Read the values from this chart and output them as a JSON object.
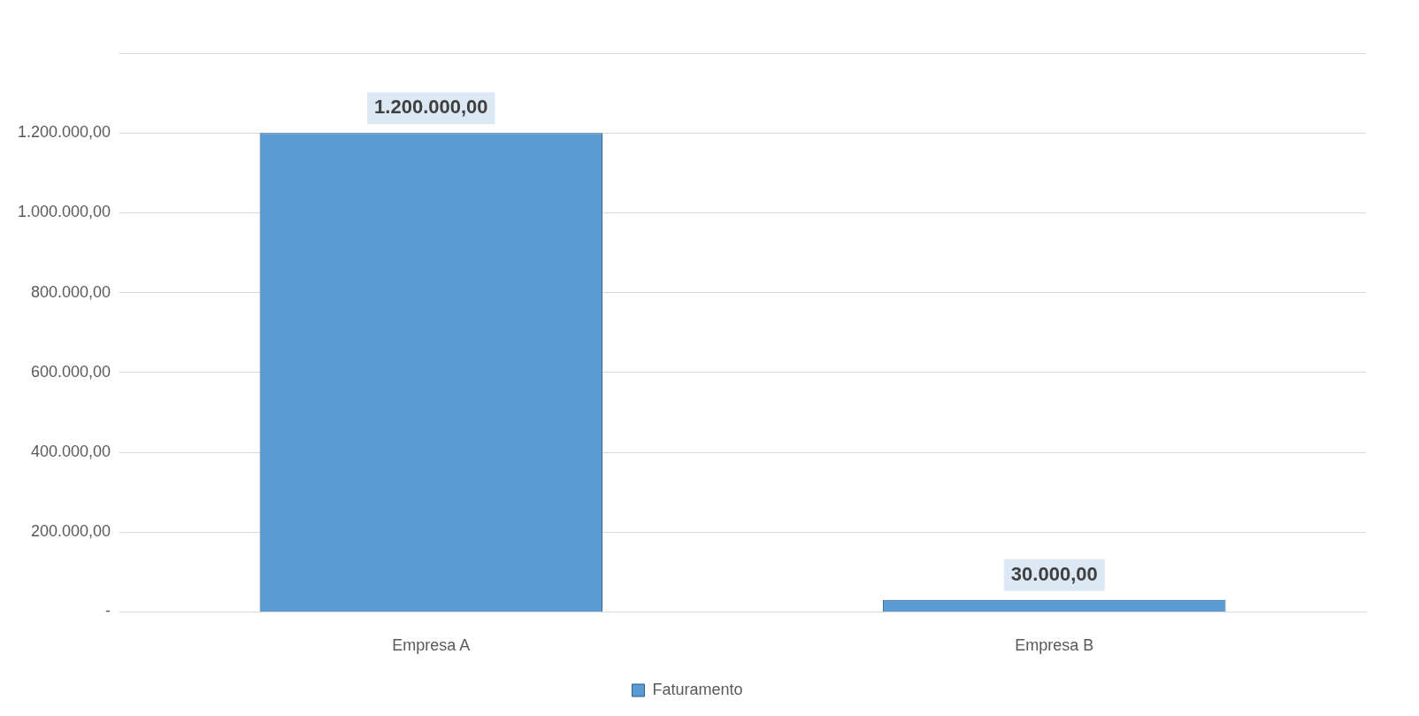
{
  "chart_data": {
    "type": "bar",
    "categories": [
      "Empresa A",
      "Empresa B"
    ],
    "series": [
      {
        "name": "Faturamento",
        "color": "#5b9bd5",
        "values": [
          1200000,
          30000
        ],
        "value_labels": [
          "1.200.000,00",
          "30.000,00"
        ]
      }
    ],
    "ylim": [
      0,
      1400000
    ],
    "yticks": [
      {
        "value": 0,
        "label": "-"
      },
      {
        "value": 200000,
        "label": "200.000,00"
      },
      {
        "value": 400000,
        "label": "400.000,00"
      },
      {
        "value": 600000,
        "label": "600.000,00"
      },
      {
        "value": 800000,
        "label": "800.000,00"
      },
      {
        "value": 1000000,
        "label": "1.000.000,00"
      },
      {
        "value": 1200000,
        "label": "1.200.000,00"
      },
      {
        "value": 1400000,
        "label": null
      }
    ],
    "grid": "y",
    "legend": "bottom"
  }
}
